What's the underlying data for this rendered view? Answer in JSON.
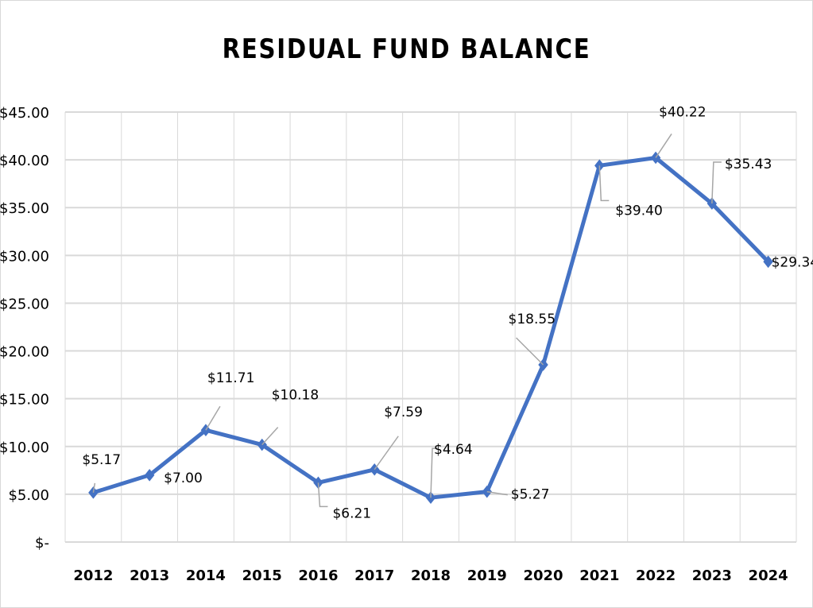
{
  "chart_data": {
    "type": "line",
    "title": "RESIDUAL FUND BALANCE",
    "xlabel": "",
    "ylabel": "",
    "categories": [
      "2012",
      "2013",
      "2014",
      "2015",
      "2016",
      "2017",
      "2018",
      "2019",
      "2020",
      "2021",
      "2022",
      "2023",
      "2024"
    ],
    "series": [
      {
        "values": [
          5.17,
          7.0,
          11.71,
          10.18,
          6.21,
          7.59,
          4.64,
          5.27,
          18.55,
          39.4,
          40.22,
          35.43,
          29.34
        ],
        "labels": [
          "$5.17",
          "$7.00",
          "$11.71",
          "$10.18",
          "$6.21",
          "$7.59",
          "$4.64",
          "$5.27",
          "$18.55",
          "$39.40",
          "$40.22",
          "$35.43",
          "$29.34"
        ],
        "color": "#4472c4",
        "marker": "diamond"
      }
    ],
    "ylim": [
      0,
      45
    ],
    "yticks": [
      0,
      5,
      10,
      15,
      20,
      25,
      30,
      35,
      40,
      45
    ],
    "ytick_labels": [
      "$-",
      "$5.00",
      "$10.00",
      "$15.00",
      "$20.00",
      "$25.00",
      "$30.00",
      "$35.00",
      "$40.00",
      "$45.00"
    ],
    "grid": true,
    "legend": "none",
    "colors": {
      "line": "#4472c4",
      "grid": "#d9d9d9",
      "leader": "#a6a6a6"
    }
  }
}
